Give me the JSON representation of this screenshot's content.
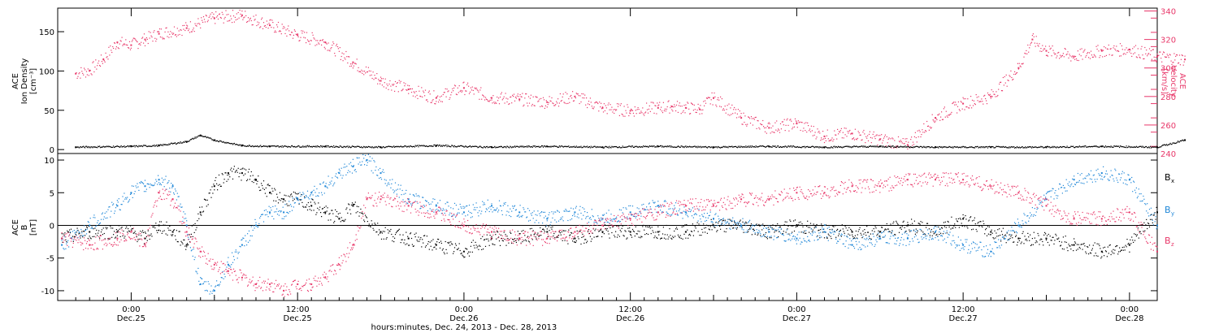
{
  "chart_data": [
    {
      "type": "scatter",
      "panel": "ion-density-velocity",
      "ylabel": [
        "ACE",
        "Ion Density",
        "[cm⁻³]"
      ],
      "ylabel_right": [
        "ACE",
        "Velocity",
        "[km/s]"
      ],
      "ylim": [
        -5,
        180
      ],
      "y_ticks": [
        0,
        50,
        100,
        150
      ],
      "ylim_right": [
        240,
        342
      ],
      "y_ticks_right": [
        240,
        260,
        280,
        300,
        320,
        340
      ],
      "series": [
        {
          "axis": "right",
          "color": "#e8386a",
          "x": [
            -4,
            -3,
            -2,
            -1,
            0,
            1,
            2,
            4,
            6,
            8,
            10,
            12,
            14,
            16,
            18,
            20,
            22,
            24,
            26,
            28,
            30,
            32,
            34,
            36,
            38,
            39,
            40,
            41,
            42,
            44,
            46,
            48,
            50,
            52,
            54,
            56,
            58,
            60,
            62,
            64,
            65,
            66,
            68,
            70,
            72,
            74,
            76
          ],
          "values": [
            296,
            298,
            306,
            318,
            316,
            320,
            324,
            328,
            335,
            337,
            330,
            323,
            318,
            304,
            291,
            285,
            279,
            286,
            279,
            278,
            276,
            280,
            272,
            270,
            272,
            273,
            272,
            271,
            279,
            265,
            258,
            261,
            252,
            254,
            250,
            246,
            265,
            275,
            280,
            300,
            320,
            312,
            308,
            312,
            313,
            308,
            306
          ]
        },
        {
          "axis": "left",
          "color": "#000000",
          "x": [
            -4,
            0,
            2,
            4,
            5,
            6,
            8,
            10,
            14,
            18,
            22,
            26,
            30,
            34,
            38,
            42,
            46,
            50,
            54,
            58,
            62,
            66,
            70,
            74,
            76
          ],
          "values": [
            3,
            4,
            5,
            10,
            18,
            12,
            5,
            4,
            4,
            3,
            5,
            3,
            4,
            3,
            4,
            3,
            4,
            3,
            4,
            3,
            3,
            3,
            4,
            3,
            12
          ]
        }
      ]
    },
    {
      "type": "scatter",
      "panel": "magnetic-field",
      "ylabel": [
        "ACE",
        "B",
        "[nT]"
      ],
      "ylim": [
        -11.5,
        11
      ],
      "y_ticks": [
        -10,
        -5,
        0,
        5,
        10
      ],
      "x_ticks": [
        {
          "x": 0,
          "time": "0:00",
          "date": "Dec.25"
        },
        {
          "x": 12,
          "time": "12:00",
          "date": "Dec.25"
        },
        {
          "x": 24,
          "time": "0:00",
          "date": "Dec.26"
        },
        {
          "x": 36,
          "time": "12:00",
          "date": "Dec.26"
        },
        {
          "x": 48,
          "time": "0:00",
          "date": "Dec.27"
        },
        {
          "x": 60,
          "time": "12:00",
          "date": "Dec.27"
        },
        {
          "x": 72,
          "time": "0:00",
          "date": "Dec.28"
        }
      ],
      "xlabel": "hours:minutes, Dec. 24, 2013 - Dec. 28, 2013",
      "xlim": [
        -5.3,
        74
      ],
      "series": [
        {
          "name": "Bx",
          "label_main": "B",
          "label_sub": "x",
          "color": "#000000",
          "x": [
            -5,
            -3,
            -1,
            0,
            1,
            2,
            3,
            4,
            5,
            6,
            7,
            8,
            9,
            10,
            11,
            12,
            13,
            14,
            15,
            16,
            18,
            20,
            22,
            24,
            26,
            28,
            30,
            32,
            34,
            36,
            38,
            40,
            42,
            44,
            46,
            48,
            50,
            52,
            54,
            56,
            58,
            60,
            62,
            64,
            66,
            68,
            70,
            72,
            74
          ],
          "values": [
            -2,
            -1,
            -1,
            -1,
            -2,
            0,
            -1,
            -3,
            2,
            6,
            8,
            8,
            7,
            5,
            4,
            4,
            3,
            2,
            1,
            3,
            -1,
            -2,
            -3,
            -4,
            -2,
            -2,
            -1,
            -2,
            -1,
            -1,
            -1,
            -1,
            0,
            0,
            -1,
            0,
            -1,
            -1,
            -1,
            0,
            -1,
            1,
            -1,
            -2,
            -2,
            -3,
            -4,
            -3,
            2
          ]
        },
        {
          "name": "By",
          "label_main": "B",
          "label_sub": "y",
          "color": "#1f87d8",
          "x": [
            -5,
            -3,
            -1,
            0,
            1,
            2,
            3,
            4,
            5,
            6,
            7,
            8,
            9,
            10,
            11,
            12,
            13,
            14,
            15,
            16,
            17,
            18,
            20,
            22,
            24,
            26,
            28,
            30,
            32,
            34,
            36,
            38,
            40,
            42,
            44,
            46,
            48,
            50,
            52,
            54,
            56,
            58,
            60,
            62,
            64,
            66,
            68,
            70,
            72,
            74
          ],
          "values": [
            -3,
            0,
            3,
            5,
            6,
            7,
            6,
            0,
            -9,
            -10,
            -6,
            -3,
            0,
            2,
            2,
            4,
            5,
            6,
            8,
            9,
            10,
            8,
            4,
            3,
            2,
            3,
            2,
            1,
            2,
            1,
            2,
            3,
            2,
            1,
            0,
            -1,
            -2,
            -1,
            -3,
            -2,
            -2,
            -1,
            -3,
            -4,
            0,
            4,
            7,
            8,
            7,
            0
          ]
        },
        {
          "name": "Bz",
          "label_main": "B",
          "label_sub": "z",
          "color": "#e8386a",
          "x": [
            -5,
            -3,
            -1,
            0,
            1,
            2,
            3,
            4,
            5,
            6,
            7,
            8,
            9,
            10,
            11,
            12,
            13,
            14,
            15,
            16,
            17,
            18,
            20,
            22,
            24,
            26,
            28,
            30,
            32,
            34,
            36,
            38,
            40,
            42,
            44,
            46,
            48,
            50,
            52,
            54,
            56,
            58,
            60,
            62,
            64,
            66,
            68,
            70,
            72,
            74
          ],
          "values": [
            -2,
            -3,
            -2,
            -1,
            -3,
            5,
            4,
            -1,
            -4,
            -6,
            -7,
            -8,
            -9,
            -9,
            -10,
            -9,
            -9,
            -8,
            -6,
            -3,
            4,
            4,
            3,
            2,
            0,
            -1,
            -2,
            -2,
            -1,
            0,
            1,
            2,
            3,
            3,
            4,
            4,
            5,
            5,
            6,
            6,
            7,
            7,
            7,
            6,
            5,
            3,
            1,
            1,
            2,
            -4
          ]
        }
      ]
    }
  ]
}
